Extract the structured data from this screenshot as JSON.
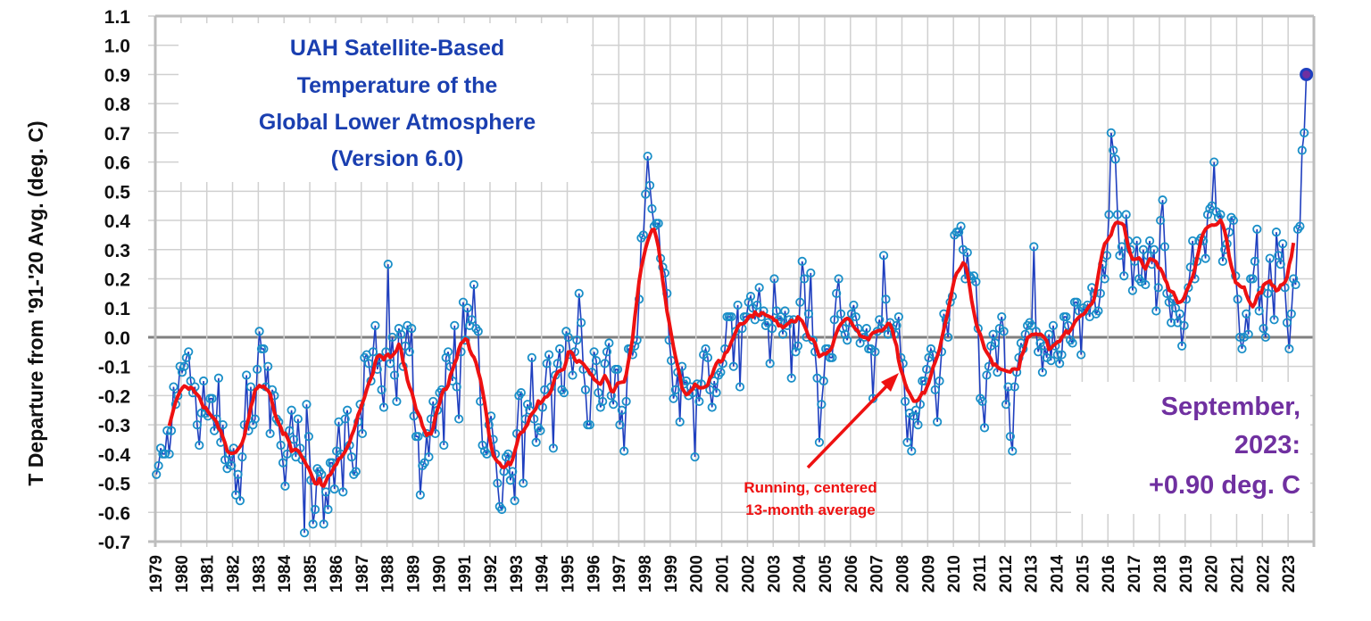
{
  "chart_data": {
    "type": "line",
    "title": "UAH Satellite-Based Temperature of the Global Lower Atmosphere (Version 6.0)",
    "title_lines": [
      "UAH Satellite-Based",
      "Temperature of the",
      "Global Lower Atmosphere",
      "(Version 6.0)"
    ],
    "ylabel": "T Departure from '91-'20 Avg. (deg. C)",
    "xlabel": "",
    "ylim": [
      -0.7,
      1.1
    ],
    "y_tick_labels": [
      "1.1",
      "1.0",
      "0.9",
      "0.8",
      "0.7",
      "0.6",
      "0.5",
      "0.4",
      "0.3",
      "0.2",
      "0.1",
      "0.0",
      "-0.1",
      "-0.2",
      "-0.3",
      "-0.4",
      "-0.5",
      "-0.6",
      "-0.7"
    ],
    "x_tick_labels": [
      "1979",
      "1980",
      "1981",
      "1982",
      "1983",
      "1984",
      "1985",
      "1986",
      "1987",
      "1988",
      "1989",
      "1990",
      "1991",
      "1992",
      "1993",
      "1994",
      "1995",
      "1996",
      "1997",
      "1998",
      "1999",
      "2000",
      "2001",
      "2002",
      "2003",
      "2004",
      "2005",
      "2006",
      "2007",
      "2008",
      "2009",
      "2010",
      "2011",
      "2012",
      "2013",
      "2014",
      "2015",
      "2016",
      "2017",
      "2018",
      "2019",
      "2020",
      "2021",
      "2022",
      "2023"
    ],
    "grid": true,
    "colors": {
      "monthly": "#1f3fbf",
      "running_mean": "#ee1111",
      "latest_point": "#7030a0",
      "grid": "#d0d0d0",
      "zero_line": "#808080"
    },
    "start": "1979-01",
    "end": "2023-09",
    "series": [
      {
        "name": "monthly",
        "values_by_year": {
          "1979": [
            -0.47,
            -0.44,
            -0.38,
            -0.4,
            -0.4,
            -0.32,
            -0.4,
            -0.32,
            -0.17,
            -0.23,
            -0.2,
            -0.1
          ],
          "1980": [
            -0.12,
            -0.1,
            -0.07,
            -0.05,
            -0.15,
            -0.19,
            -0.17,
            -0.3,
            -0.37,
            -0.26,
            -0.15,
            -0.26
          ],
          "1981": [
            -0.27,
            -0.21,
            -0.21,
            -0.32,
            -0.28,
            -0.14,
            -0.36,
            -0.3,
            -0.42,
            -0.45,
            -0.4,
            -0.44
          ],
          "1982": [
            -0.38,
            -0.54,
            -0.47,
            -0.56,
            -0.41,
            -0.3,
            -0.13,
            -0.32,
            -0.17,
            -0.3,
            -0.28,
            -0.11
          ],
          "1983": [
            0.02,
            -0.04,
            -0.04,
            -0.17,
            -0.1,
            -0.33,
            -0.18,
            -0.2,
            -0.28,
            -0.29,
            -0.37,
            -0.43
          ],
          "1984": [
            -0.51,
            -0.4,
            -0.32,
            -0.25,
            -0.35,
            -0.41,
            -0.28,
            -0.38,
            -0.42,
            -0.67,
            -0.23,
            -0.34
          ],
          "1985": [
            -0.49,
            -0.64,
            -0.59,
            -0.45,
            -0.46,
            -0.47,
            -0.64,
            -0.53,
            -0.59,
            -0.43,
            -0.43,
            -0.52
          ],
          "1986": [
            -0.39,
            -0.29,
            -0.4,
            -0.53,
            -0.28,
            -0.25,
            -0.37,
            -0.41,
            -0.47,
            -0.46,
            -0.29,
            -0.23
          ],
          "1987": [
            -0.33,
            -0.07,
            -0.06,
            -0.09,
            -0.15,
            -0.05,
            0.04,
            -0.11,
            -0.07,
            -0.18,
            -0.24,
            -0.05
          ],
          "1988": [
            0.25,
            -0.09,
            0.0,
            -0.13,
            -0.22,
            0.03,
            0.01,
            -0.1,
            -0.03,
            0.04,
            -0.05,
            0.03
          ],
          "1989": [
            -0.27,
            -0.34,
            -0.34,
            -0.54,
            -0.44,
            -0.43,
            -0.33,
            -0.41,
            -0.28,
            -0.22,
            -0.33,
            -0.25
          ],
          "1990": [
            -0.19,
            -0.18,
            -0.37,
            -0.07,
            -0.05,
            -0.1,
            -0.15,
            0.04,
            -0.17,
            -0.28,
            -0.05,
            0.12
          ],
          "1991": [
            -0.01,
            0.1,
            0.04,
            0.06,
            0.18,
            0.03,
            0.02,
            -0.22,
            -0.37,
            -0.39,
            -0.4,
            -0.3
          ],
          "1992": [
            -0.27,
            -0.35,
            -0.4,
            -0.5,
            -0.58,
            -0.59,
            -0.46,
            -0.41,
            -0.4,
            -0.49,
            -0.46,
            -0.56
          ],
          "1993": [
            -0.33,
            -0.2,
            -0.19,
            -0.5,
            -0.28,
            -0.23,
            -0.25,
            -0.07,
            -0.28,
            -0.36,
            -0.31,
            -0.32
          ],
          "1994": [
            -0.24,
            -0.18,
            -0.09,
            -0.06,
            -0.17,
            -0.38,
            -0.13,
            -0.09,
            -0.04,
            -0.18,
            -0.19,
            0.02
          ],
          "1995": [
            0.0,
            -0.06,
            -0.13,
            -0.05,
            -0.01,
            0.15,
            0.05,
            -0.11,
            -0.18,
            -0.3,
            -0.3,
            -0.12
          ],
          "1996": [
            -0.05,
            -0.08,
            -0.19,
            -0.24,
            -0.22,
            -0.09,
            -0.05,
            -0.02,
            -0.2,
            -0.23,
            -0.11,
            -0.11
          ],
          "1997": [
            -0.3,
            -0.25,
            -0.39,
            -0.22,
            -0.04,
            -0.04,
            -0.06,
            -0.03,
            -0.01,
            0.13,
            0.34,
            0.35
          ],
          "1998": [
            0.49,
            0.62,
            0.52,
            0.44,
            0.38,
            0.39,
            0.39,
            0.27,
            0.24,
            0.22,
            0.15,
            -0.01
          ],
          "1999": [
            -0.08,
            -0.21,
            -0.18,
            -0.12,
            -0.29,
            -0.1,
            -0.16,
            -0.15,
            -0.2,
            -0.17,
            -0.19,
            -0.41
          ],
          "2000": [
            -0.16,
            -0.22,
            -0.16,
            -0.06,
            -0.04,
            -0.07,
            -0.18,
            -0.24,
            -0.15,
            -0.19,
            -0.13,
            -0.12
          ],
          "2001": [
            -0.09,
            -0.04,
            0.07,
            0.07,
            0.07,
            -0.1,
            0.02,
            0.11,
            -0.17,
            0.03,
            0.07,
            0.07
          ],
          "2002": [
            0.12,
            0.14,
            0.1,
            0.06,
            0.11,
            0.17,
            0.07,
            0.09,
            0.04,
            0.05,
            -0.09,
            0.03
          ],
          "2003": [
            0.2,
            0.09,
            0.06,
            0.07,
            0.01,
            0.09,
            0.04,
            0.06,
            -0.14,
            0.06,
            -0.05,
            -0.03
          ],
          "2004": [
            0.12,
            0.26,
            0.2,
            0.0,
            0.08,
            0.22,
            -0.01,
            -0.05,
            -0.14,
            -0.36,
            -0.23,
            -0.15
          ],
          "2005": [
            -0.04,
            -0.04,
            -0.07,
            -0.07,
            0.06,
            0.15,
            0.2,
            0.08,
            0.03,
            0.01,
            -0.01,
            0.05
          ],
          "2006": [
            0.08,
            0.11,
            0.07,
            0.03,
            -0.02,
            0.01,
            0.0,
            0.03,
            -0.04,
            -0.04,
            -0.21,
            -0.05
          ],
          "2007": [
            0.02,
            0.06,
            0.03,
            0.28,
            0.13,
            0.01,
            0.05,
            0.03,
            0.01,
            0.04,
            0.07,
            -0.07
          ],
          "2008": [
            -0.09,
            -0.22,
            -0.36,
            -0.26,
            -0.39,
            -0.27,
            -0.25,
            -0.3,
            -0.23,
            -0.15,
            -0.15,
            -0.11
          ],
          "2009": [
            -0.07,
            -0.04,
            -0.06,
            -0.18,
            -0.29,
            -0.15,
            -0.05,
            0.08,
            0.06,
            0.0,
            0.12,
            0.14
          ],
          "2010": [
            0.35,
            0.36,
            0.36,
            0.38,
            0.3,
            0.2,
            0.29,
            0.21,
            0.2,
            0.21,
            0.19,
            0.03
          ],
          "2011": [
            -0.21,
            -0.22,
            -0.31,
            -0.13,
            -0.1,
            -0.03,
            0.01,
            -0.02,
            -0.12,
            0.03,
            0.07,
            0.02
          ],
          "2012": [
            -0.23,
            -0.17,
            -0.34,
            -0.39,
            -0.17,
            -0.12,
            -0.07,
            -0.02,
            -0.04,
            0.01,
            0.04,
            0.05
          ],
          "2013": [
            0.04,
            0.31,
            0.02,
            -0.05,
            -0.02,
            -0.12,
            -0.03,
            -0.07,
            0.01,
            -0.08,
            0.04,
            -0.03
          ],
          "2014": [
            -0.06,
            -0.09,
            -0.06,
            0.07,
            0.07,
            0.04,
            -0.01,
            -0.02,
            0.12,
            0.12,
            0.09,
            -0.06
          ],
          "2015": [
            0.1,
            0.09,
            0.11,
            0.07,
            0.17,
            0.15,
            0.08,
            0.09,
            0.15,
            0.25,
            0.2,
            0.28
          ],
          "2016": [
            0.42,
            0.7,
            0.64,
            0.61,
            0.42,
            0.28,
            0.31,
            0.21,
            0.42,
            0.33,
            0.3,
            0.16
          ],
          "2017": [
            0.26,
            0.33,
            0.2,
            0.19,
            0.3,
            0.18,
            0.28,
            0.33,
            0.25,
            0.3,
            0.09,
            0.17
          ],
          "2018": [
            0.4,
            0.47,
            0.31,
            0.15,
            0.12,
            0.05,
            0.13,
            0.1,
            0.05,
            0.08,
            -0.03,
            0.04
          ],
          "2019": [
            0.13,
            0.17,
            0.24,
            0.33,
            0.2,
            0.26,
            0.33,
            0.34,
            0.33,
            0.27,
            0.42,
            0.44
          ],
          "2020": [
            0.45,
            0.6,
            0.43,
            0.41,
            0.42,
            0.26,
            0.3,
            0.32,
            0.36,
            0.41,
            0.4,
            0.21
          ],
          "2021": [
            0.13,
            0.0,
            -0.04,
            0.0,
            0.08,
            0.01,
            0.2,
            0.2,
            0.26,
            0.37,
            0.09,
            0.16
          ],
          "2022": [
            0.03,
            0.0,
            0.15,
            0.27,
            0.17,
            0.06,
            0.36,
            0.28,
            0.25,
            0.32,
            0.17,
            0.05
          ],
          "2023": [
            -0.04,
            0.08,
            0.2,
            0.18,
            0.37,
            0.38,
            0.64,
            0.7,
            0.9
          ]
        }
      },
      {
        "name": "Running, centered 13-month average",
        "window_months": 13
      }
    ],
    "annotations": {
      "running_mean_label_lines": [
        "Running, centered",
        "13-month average"
      ],
      "latest_lines": [
        "September,",
        "2023:",
        "+0.90 deg. C"
      ]
    }
  }
}
